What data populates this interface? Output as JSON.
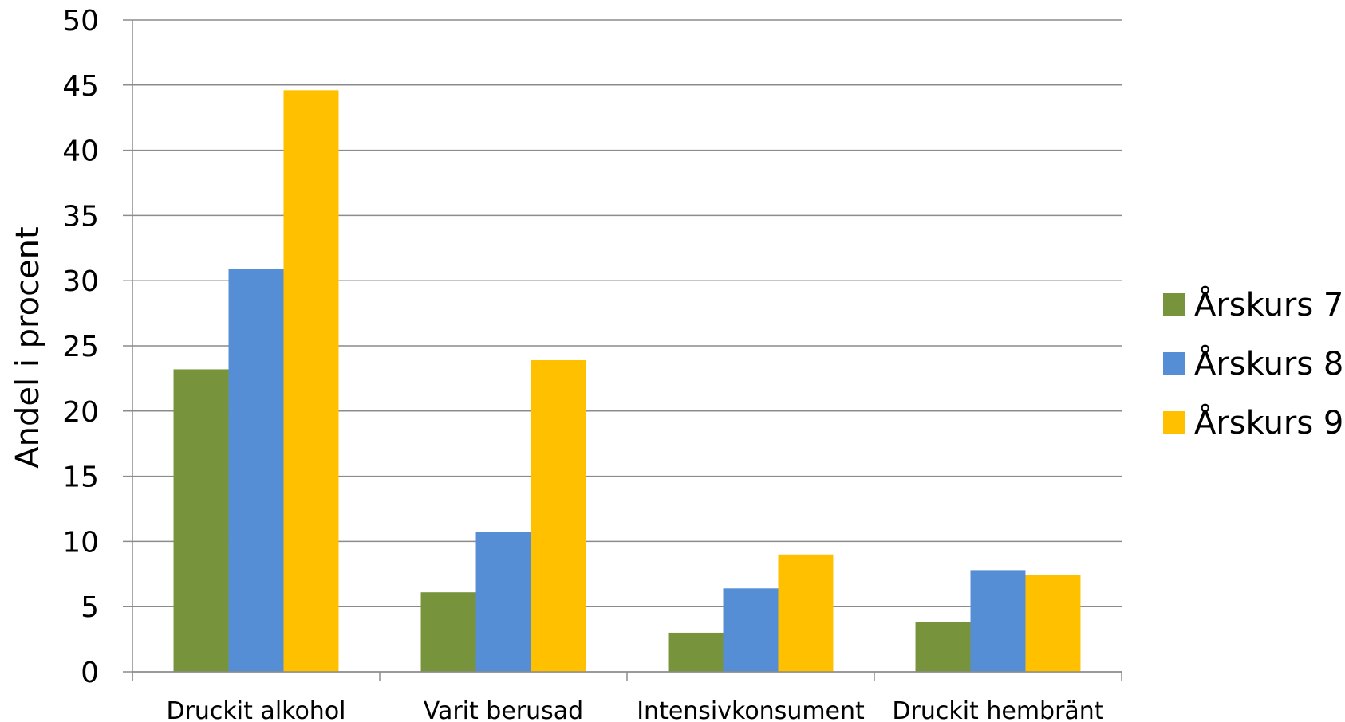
{
  "chart_data": {
    "type": "bar",
    "title": "",
    "ylabel": "Andel i procent",
    "xlabel": "",
    "ylim": [
      0,
      50
    ],
    "y_ticks": [
      0,
      5,
      10,
      15,
      20,
      25,
      30,
      35,
      40,
      45,
      50
    ],
    "grid": true,
    "legend_position": "right",
    "categories": [
      "Druckit alkohol",
      "Varit berusad",
      "Intensivkonsument",
      "Druckit hembränt"
    ],
    "series": [
      {
        "name": "Årskurs 7",
        "color": "#77933c",
        "values": [
          23.2,
          6.1,
          3.0,
          3.8
        ]
      },
      {
        "name": "Årskurs 8",
        "color": "#558ed5",
        "values": [
          30.9,
          10.7,
          6.4,
          7.8
        ]
      },
      {
        "name": "Årskurs 9",
        "color": "#ffc000",
        "values": [
          44.6,
          23.9,
          9.0,
          7.4
        ]
      }
    ]
  }
}
